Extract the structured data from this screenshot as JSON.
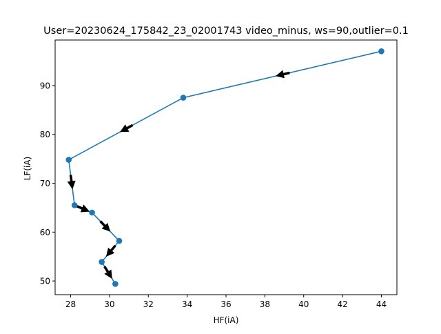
{
  "chart_data": {
    "type": "line",
    "title": "User=20230624_175842_23_02001743 video_minus, ws=90,outlier=0.1",
    "xlabel": "HF(iA)",
    "ylabel": "LF(iA)",
    "xlim": [
      27.2,
      44.8
    ],
    "ylim": [
      47.2,
      99.3
    ],
    "xticks": [
      28,
      30,
      32,
      34,
      36,
      38,
      40,
      42,
      44
    ],
    "yticks": [
      50,
      60,
      70,
      80,
      90
    ],
    "grid": false,
    "marker": "circle",
    "arrows": true,
    "colors": {
      "line": "#1f77b4",
      "marker": "#1f77b4",
      "arrow": "#000000"
    },
    "series": [
      {
        "x": [
          44.0,
          33.8,
          27.9,
          28.2,
          29.1,
          30.5,
          29.6,
          30.3
        ],
        "y": [
          97.0,
          87.5,
          74.8,
          65.5,
          64.0,
          58.2,
          53.9,
          49.4
        ]
      }
    ]
  }
}
